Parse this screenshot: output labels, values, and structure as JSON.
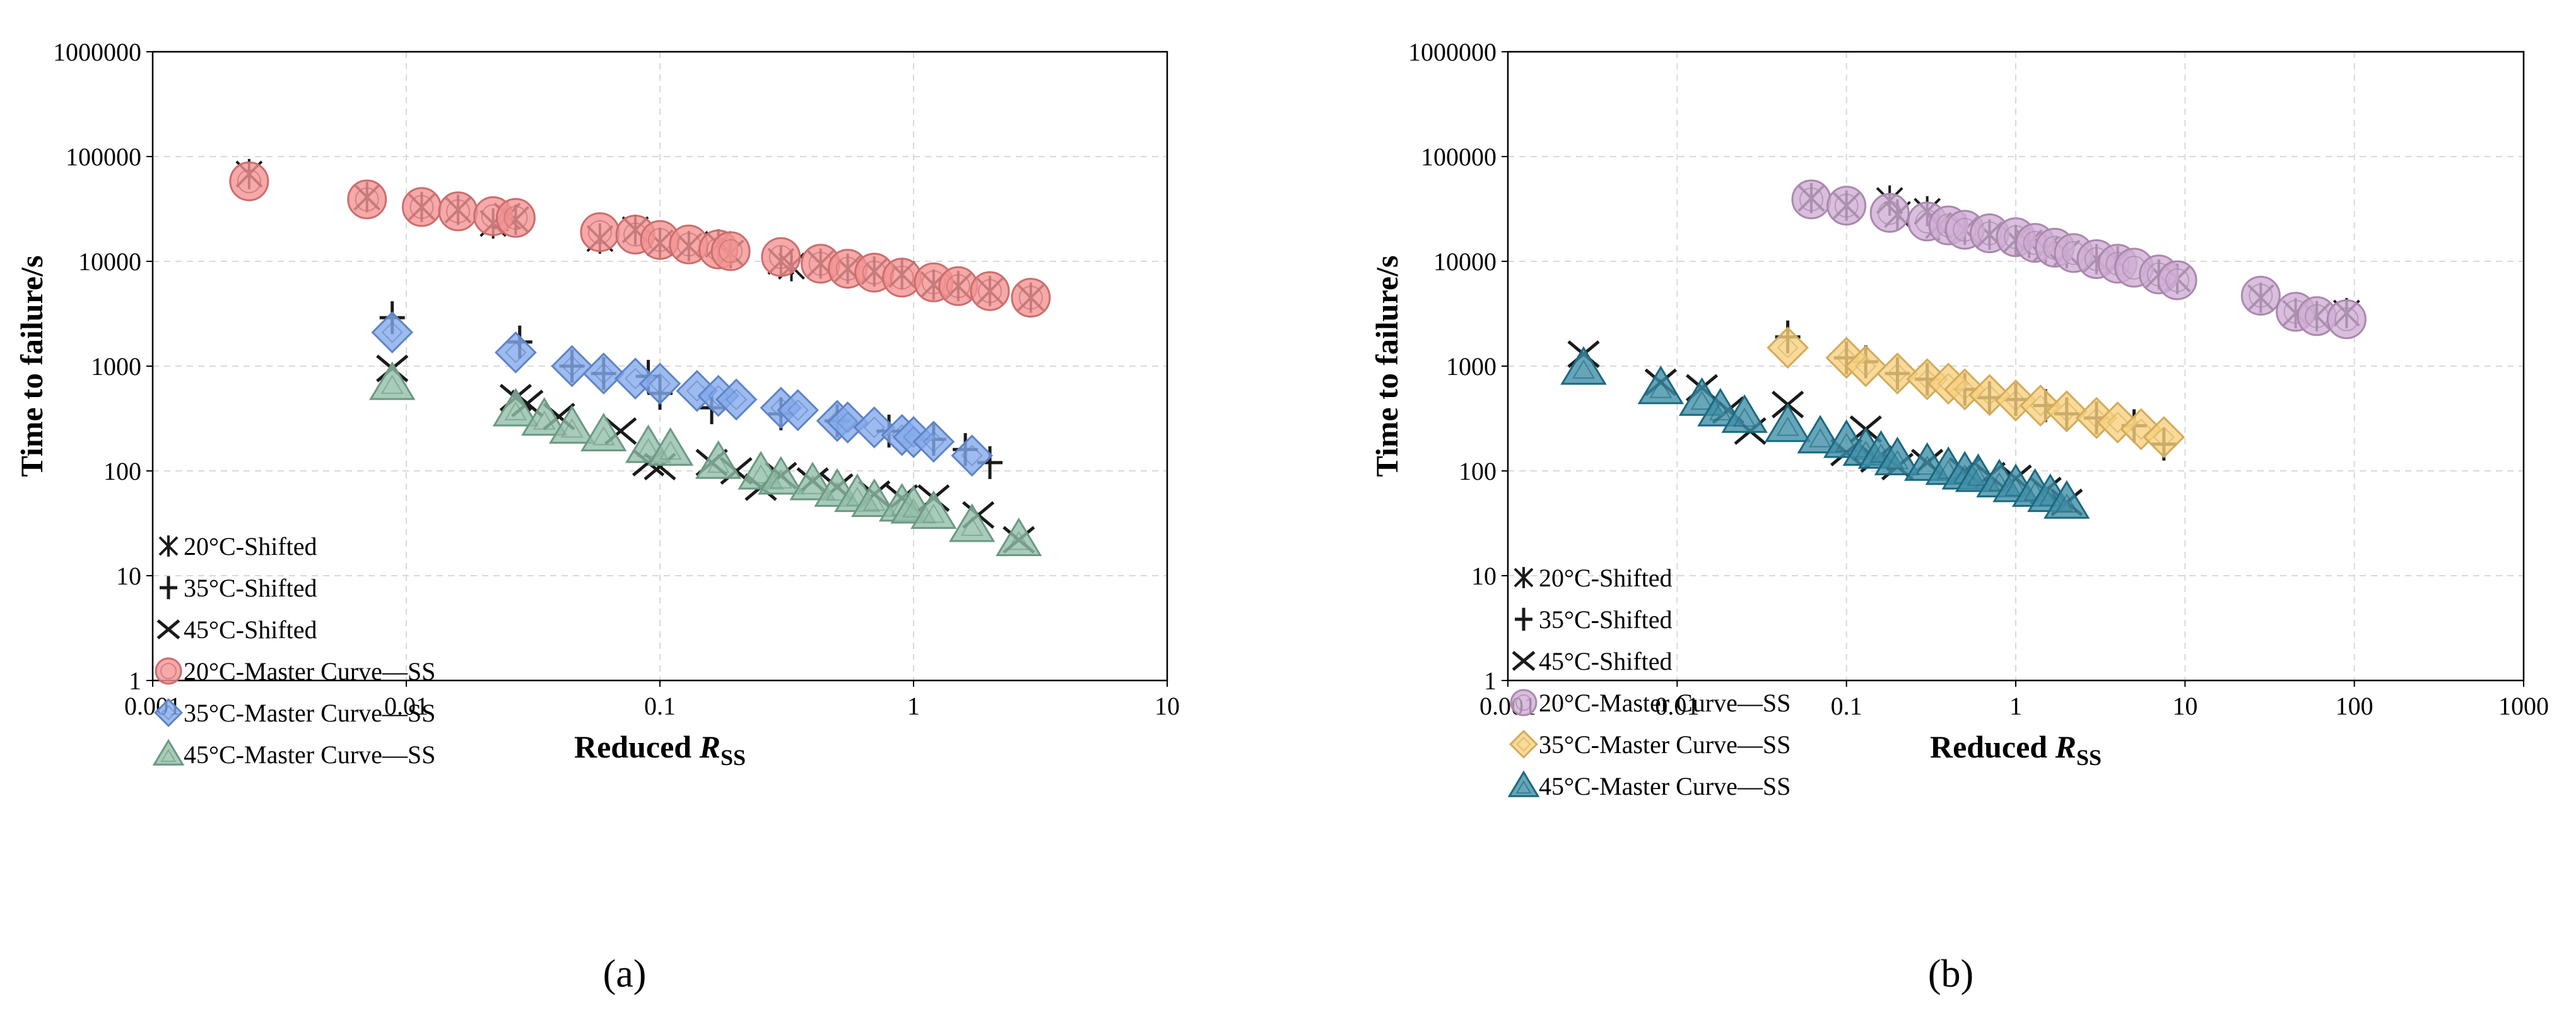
{
  "figure_labels": [
    "(a)",
    "(b)"
  ],
  "colors": {
    "shifted": "#1a1a1a",
    "a_20": "#f08080",
    "a_35": "#6f9be8",
    "a_45": "#7fb39a",
    "b_20": "#c8a0cc",
    "b_35": "#f7c96a",
    "b_45": "#1f7a96"
  },
  "chart_data": [
    {
      "type": "scatter",
      "panel_label": "(a)",
      "title": "",
      "xlabel_main": "Reduced ",
      "xlabel_var": "R",
      "xlabel_sub": "SS",
      "ylabel": "Time to failure/s",
      "xscale": "log",
      "yscale": "log",
      "xlim": [
        0.001,
        10
      ],
      "ylim": [
        1,
        1000000
      ],
      "grid": true,
      "legend_position": "lower-left",
      "x_tick_labels": [
        "0.001",
        "0.01",
        "0.1",
        "1",
        "10"
      ],
      "y_tick_labels": [
        "1",
        "10",
        "100",
        "1000",
        "10000",
        "100000",
        "1000000"
      ],
      "series": [
        {
          "name": "20°C-Shifted",
          "marker": "asterisk",
          "color_key": "shifted",
          "points": [
            [
              0.0024,
              68000
            ],
            [
              0.007,
              41000
            ],
            [
              0.0115,
              33000
            ],
            [
              0.016,
              31000
            ],
            [
              0.022,
              23000
            ],
            [
              0.025,
              27000
            ],
            [
              0.027,
              25000
            ],
            [
              0.058,
              16500
            ],
            [
              0.08,
              20000
            ],
            [
              0.1,
              15000
            ],
            [
              0.13,
              14000
            ],
            [
              0.17,
              14500
            ],
            [
              0.19,
              12000
            ],
            [
              0.3,
              10000
            ],
            [
              0.33,
              9000
            ],
            [
              0.43,
              9500
            ],
            [
              0.55,
              8500
            ],
            [
              0.7,
              8000
            ],
            [
              0.9,
              7500
            ],
            [
              1.2,
              6000
            ],
            [
              1.5,
              5800
            ],
            [
              2.0,
              5200
            ],
            [
              2.9,
              4500
            ]
          ]
        },
        {
          "name": "35°C-Shifted",
          "marker": "plus",
          "color_key": "shifted",
          "points": [
            [
              0.0088,
              2900
            ],
            [
              0.028,
              1700
            ],
            [
              0.045,
              1000
            ],
            [
              0.06,
              850
            ],
            [
              0.09,
              800
            ],
            [
              0.1,
              550
            ],
            [
              0.16,
              400
            ],
            [
              0.3,
              350
            ],
            [
              0.5,
              300
            ],
            [
              0.8,
              240
            ],
            [
              1.2,
              200
            ],
            [
              1.6,
              160
            ],
            [
              2.0,
              120
            ]
          ]
        },
        {
          "name": "45°C-Shifted",
          "marker": "cross",
          "color_key": "shifted",
          "points": [
            [
              0.0088,
              950
            ],
            [
              0.027,
              500
            ],
            [
              0.03,
              440
            ],
            [
              0.04,
              330
            ],
            [
              0.07,
              240
            ],
            [
              0.09,
              120
            ],
            [
              0.1,
              110
            ],
            [
              0.16,
              120
            ],
            [
              0.2,
              100
            ],
            [
              0.25,
              70
            ],
            [
              0.3,
              90
            ],
            [
              0.4,
              80
            ],
            [
              0.5,
              70
            ],
            [
              0.7,
              60
            ],
            [
              0.9,
              55
            ],
            [
              1.2,
              55
            ],
            [
              1.8,
              38
            ],
            [
              2.6,
              22
            ]
          ]
        },
        {
          "name": "20°C-Master Curve—SS",
          "marker": "circle",
          "color_key": "a_20",
          "points": [
            [
              0.0024,
              58000
            ],
            [
              0.007,
              39000
            ],
            [
              0.0115,
              33000
            ],
            [
              0.016,
              30000
            ],
            [
              0.022,
              27000
            ],
            [
              0.027,
              26000
            ],
            [
              0.058,
              19000
            ],
            [
              0.08,
              18000
            ],
            [
              0.1,
              16000
            ],
            [
              0.13,
              14500
            ],
            [
              0.17,
              13000
            ],
            [
              0.19,
              12500
            ],
            [
              0.3,
              11000
            ],
            [
              0.43,
              9500
            ],
            [
              0.55,
              8500
            ],
            [
              0.7,
              7800
            ],
            [
              0.9,
              7000
            ],
            [
              1.2,
              6300
            ],
            [
              1.5,
              5800
            ],
            [
              2.0,
              5200
            ],
            [
              2.9,
              4500
            ]
          ]
        },
        {
          "name": "35°C-Master Curve—SS",
          "marker": "diamond",
          "color_key": "a_35",
          "points": [
            [
              0.0088,
              2100
            ],
            [
              0.027,
              1350
            ],
            [
              0.045,
              1000
            ],
            [
              0.06,
              850
            ],
            [
              0.08,
              760
            ],
            [
              0.1,
              680
            ],
            [
              0.14,
              580
            ],
            [
              0.17,
              520
            ],
            [
              0.2,
              480
            ],
            [
              0.3,
              400
            ],
            [
              0.35,
              380
            ],
            [
              0.5,
              300
            ],
            [
              0.55,
              290
            ],
            [
              0.7,
              260
            ],
            [
              0.9,
              220
            ],
            [
              1.0,
              210
            ],
            [
              1.2,
              190
            ],
            [
              1.7,
              140
            ]
          ]
        },
        {
          "name": "45°C-Master Curve—SS",
          "marker": "triangle",
          "color_key": "a_45",
          "points": [
            [
              0.0088,
              680
            ],
            [
              0.027,
              380
            ],
            [
              0.035,
              310
            ],
            [
              0.045,
              260
            ],
            [
              0.06,
              220
            ],
            [
              0.09,
              170
            ],
            [
              0.11,
              160
            ],
            [
              0.17,
              120
            ],
            [
              0.25,
              95
            ],
            [
              0.3,
              85
            ],
            [
              0.4,
              75
            ],
            [
              0.5,
              65
            ],
            [
              0.6,
              58
            ],
            [
              0.7,
              52
            ],
            [
              0.9,
              47
            ],
            [
              1.0,
              45
            ],
            [
              1.2,
              40
            ],
            [
              1.7,
              30
            ],
            [
              2.6,
              22
            ]
          ]
        }
      ]
    },
    {
      "type": "scatter",
      "panel_label": "(b)",
      "title": "",
      "xlabel_main": "Reduced ",
      "xlabel_var": "R",
      "xlabel_sub": "SS",
      "ylabel": "Time to failure/s",
      "xscale": "log",
      "yscale": "log",
      "xlim": [
        0.001,
        1000
      ],
      "ylim": [
        1,
        1000000
      ],
      "grid": true,
      "legend_position": "lower-left",
      "x_tick_labels": [
        "0.001",
        "0.01",
        "0.1",
        "1",
        "10",
        "100",
        "1000"
      ],
      "y_tick_labels": [
        "1",
        "10",
        "100",
        "1000",
        "10000",
        "100000",
        "1000000"
      ],
      "series": [
        {
          "name": "20°C-Shifted",
          "marker": "asterisk",
          "color_key": "shifted",
          "points": [
            [
              0.062,
              40000
            ],
            [
              0.1,
              34000
            ],
            [
              0.18,
              38000
            ],
            [
              0.2,
              28000
            ],
            [
              0.3,
              30000
            ],
            [
              0.35,
              22000
            ],
            [
              0.5,
              20000
            ],
            [
              0.7,
              18000
            ],
            [
              1.0,
              16000
            ],
            [
              1.2,
              15000
            ],
            [
              1.5,
              13000
            ],
            [
              2.0,
              12000
            ],
            [
              3.0,
              10500
            ],
            [
              4.0,
              10000
            ],
            [
              7.0,
              7500
            ],
            [
              9.0,
              6800
            ],
            [
              28,
              4500
            ],
            [
              45,
              3200
            ],
            [
              60,
              3000
            ],
            [
              90,
              3200
            ]
          ]
        },
        {
          "name": "35°C-Shifted",
          "marker": "plus",
          "color_key": "shifted",
          "points": [
            [
              0.045,
              1900
            ],
            [
              0.1,
              1200
            ],
            [
              0.13,
              1100
            ],
            [
              0.2,
              850
            ],
            [
              0.3,
              750
            ],
            [
              0.5,
              600
            ],
            [
              0.7,
              500
            ],
            [
              1.0,
              480
            ],
            [
              1.5,
              420
            ],
            [
              2.0,
              350
            ],
            [
              3.0,
              320
            ],
            [
              5.0,
              270
            ],
            [
              7.5,
              180
            ]
          ]
        },
        {
          "name": "45°C-Shifted",
          "marker": "cross",
          "color_key": "shifted",
          "points": [
            [
              0.0028,
              1300
            ],
            [
              0.008,
              700
            ],
            [
              0.014,
              620
            ],
            [
              0.02,
              380
            ],
            [
              0.027,
              240
            ],
            [
              0.045,
              430
            ],
            [
              0.1,
              150
            ],
            [
              0.13,
              250
            ],
            [
              0.15,
              130
            ],
            [
              0.2,
              110
            ],
            [
              0.3,
              120
            ],
            [
              0.5,
              100
            ],
            [
              0.7,
              90
            ],
            [
              1.0,
              85
            ],
            [
              1.5,
              65
            ],
            [
              2.0,
              50
            ]
          ]
        },
        {
          "name": "20°C-Master Curve—SS",
          "marker": "circle",
          "color_key": "b_20",
          "points": [
            [
              0.062,
              39000
            ],
            [
              0.1,
              34000
            ],
            [
              0.18,
              29000
            ],
            [
              0.3,
              24000
            ],
            [
              0.4,
              22000
            ],
            [
              0.5,
              20000
            ],
            [
              0.7,
              18500
            ],
            [
              1.0,
              17000
            ],
            [
              1.3,
              15000
            ],
            [
              1.7,
              13500
            ],
            [
              2.2,
              12000
            ],
            [
              3.0,
              10500
            ],
            [
              4.0,
              9500
            ],
            [
              5.0,
              8700
            ],
            [
              7.0,
              7500
            ],
            [
              9.0,
              6600
            ],
            [
              28,
              4700
            ],
            [
              45,
              3300
            ],
            [
              60,
              3000
            ],
            [
              90,
              2800
            ]
          ]
        },
        {
          "name": "35°C-Master Curve—SS",
          "marker": "diamond",
          "color_key": "b_35",
          "points": [
            [
              0.045,
              1500
            ],
            [
              0.1,
              1200
            ],
            [
              0.13,
              1000
            ],
            [
              0.2,
              850
            ],
            [
              0.3,
              750
            ],
            [
              0.4,
              680
            ],
            [
              0.5,
              600
            ],
            [
              0.7,
              530
            ],
            [
              1.0,
              470
            ],
            [
              1.4,
              420
            ],
            [
              2.0,
              370
            ],
            [
              3.0,
              320
            ],
            [
              4.0,
              290
            ],
            [
              5.5,
              250
            ],
            [
              7.5,
              210
            ]
          ]
        },
        {
          "name": "45°C-Master Curve—SS",
          "marker": "triangle",
          "color_key": "b_45",
          "points": [
            [
              0.0028,
              950
            ],
            [
              0.008,
              620
            ],
            [
              0.014,
              480
            ],
            [
              0.018,
              380
            ],
            [
              0.025,
              330
            ],
            [
              0.045,
              270
            ],
            [
              0.07,
              210
            ],
            [
              0.1,
              190
            ],
            [
              0.13,
              160
            ],
            [
              0.16,
              150
            ],
            [
              0.2,
              130
            ],
            [
              0.3,
              115
            ],
            [
              0.4,
              105
            ],
            [
              0.5,
              95
            ],
            [
              0.6,
              90
            ],
            [
              0.8,
              80
            ],
            [
              1.0,
              72
            ],
            [
              1.3,
              65
            ],
            [
              1.6,
              58
            ],
            [
              2.0,
              50
            ]
          ]
        }
      ]
    }
  ]
}
